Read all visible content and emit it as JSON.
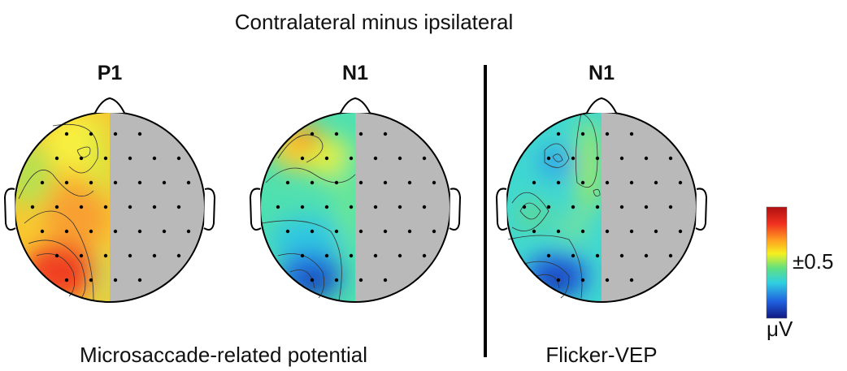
{
  "title": "Contralateral minus ipsilateral",
  "panels": [
    {
      "label": "P1"
    },
    {
      "label": "N1"
    },
    {
      "label": "N1"
    }
  ],
  "captions": [
    "Microsaccade-related potential",
    "Flicker-VEP"
  ],
  "colorbar": {
    "tick_label": "±0.5",
    "unit": "μV"
  }
}
